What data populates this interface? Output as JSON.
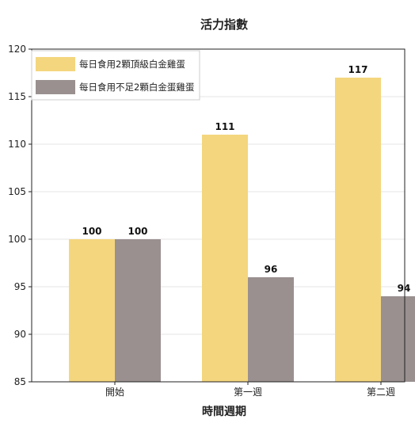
{
  "chart_data": {
    "type": "bar",
    "title": "活力指數",
    "xlabel": "時間週期",
    "ylabel": "",
    "categories": [
      "開始",
      "第一週",
      "第二週"
    ],
    "series": [
      {
        "name": "每日食用2顆頂級白金雞蛋",
        "values": [
          100,
          111,
          117
        ],
        "color": "#F4D67E"
      },
      {
        "name": "每日食用不足2顆白金蛋雞蛋",
        "values": [
          100,
          96,
          94
        ],
        "color": "#9A9090"
      }
    ],
    "ylim": [
      85,
      120
    ],
    "yticks": [
      85,
      90,
      95,
      100,
      105,
      110,
      115,
      120
    ],
    "grid": true,
    "legend": "top-left"
  }
}
